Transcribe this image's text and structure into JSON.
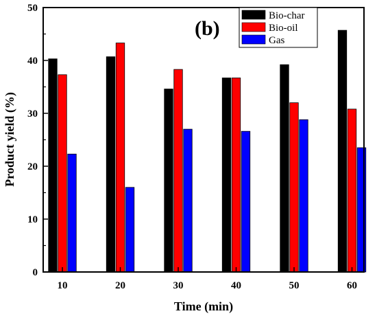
{
  "chart_data": {
    "type": "bar",
    "panel_label": "(b)",
    "xlabel": "Time (min)",
    "ylabel": "Product yield (%)",
    "ylim": [
      0,
      50
    ],
    "yticks": [
      0,
      10,
      20,
      30,
      40,
      50
    ],
    "categories": [
      "10",
      "20",
      "30",
      "40",
      "50",
      "60"
    ],
    "series": [
      {
        "name": "Bio-char",
        "color": "#000000",
        "values": [
          40.3,
          40.7,
          34.6,
          36.7,
          39.2,
          45.7
        ]
      },
      {
        "name": "Bio-oil",
        "color": "#ff0000",
        "values": [
          37.3,
          43.3,
          38.3,
          36.7,
          32.0,
          30.8
        ]
      },
      {
        "name": "Gas",
        "color": "#0000ff",
        "values": [
          22.3,
          16.0,
          27.0,
          26.6,
          28.8,
          23.5
        ]
      }
    ],
    "legend_position": "top-right",
    "grid": false
  }
}
